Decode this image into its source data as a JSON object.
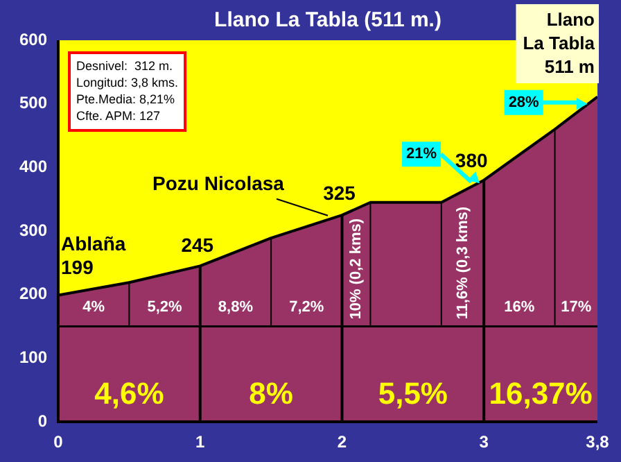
{
  "chart_data": {
    "type": "area",
    "title": "Llano La Tabla (511 m.)",
    "x": [
      0,
      0.5,
      1,
      1.5,
      2,
      2.2,
      2.7,
      3,
      3.5,
      3.8
    ],
    "series": [
      {
        "color": "#993366",
        "values": [
          199,
          219,
          245,
          289,
          325,
          345,
          345,
          380,
          460,
          511
        ]
      }
    ],
    "xlim": [
      0,
      3.8
    ],
    "xticks": [
      0,
      1,
      2,
      3,
      {
        "value": 3.8,
        "label": "3,8"
      }
    ],
    "ylim": [
      0,
      600
    ],
    "yticks": [
      0,
      100,
      200,
      300,
      400,
      500,
      600
    ],
    "grid": false,
    "legend": false,
    "ref_lines": [
      {
        "axis": "y",
        "value": 150,
        "color": "#000000"
      },
      {
        "axis": "x",
        "value": 0.5,
        "color": "#000000"
      },
      {
        "axis": "x",
        "value": 1,
        "color": "#000000"
      },
      {
        "axis": "x",
        "value": 1.5,
        "color": "#000000"
      },
      {
        "axis": "x",
        "value": 2,
        "color": "#000000"
      },
      {
        "axis": "x",
        "value": 2.2,
        "color": "#000000"
      },
      {
        "axis": "x",
        "value": 2.7,
        "color": "#000000"
      },
      {
        "axis": "x",
        "value": 3,
        "color": "#000000"
      },
      {
        "axis": "x",
        "value": 3.5,
        "color": "#000000"
      }
    ],
    "annotations": [
      "Desnivel:  312 m.\nLongitud: 3,8 kms.\nPte.Media: 8,21%\nCfte. APM: 127",
      "Llano\nLa Tabla\n511 m",
      {
        "text": "Ablaña\n199",
        "x": 0,
        "y": 199
      },
      {
        "text": "245",
        "x": 1,
        "y": 245
      },
      "Pozu Nicolasa",
      {
        "text": "325",
        "x": 2,
        "y": 325
      },
      {
        "text": "380",
        "x": 3,
        "y": 380
      },
      {
        "text": "21%",
        "x": 2.97,
        "y": 375
      },
      {
        "text": "28%",
        "x": 3.73,
        "y": 500
      },
      "4%",
      "5,2%",
      "8,8%",
      "7,2%",
      "10% (0,2 kms)",
      "11,6% (0,3 kms)",
      "16%",
      "17%",
      "4,6%",
      "8%",
      "5,5%",
      "16,37%"
    ]
  }
}
